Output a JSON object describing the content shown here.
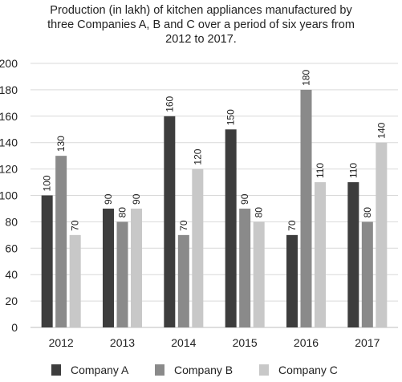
{
  "chart_data": {
    "type": "bar",
    "title_lines": [
      "Production (in lakh) of kitchen appliances manufactured by",
      "three Companies A, B and C over a period of six years from",
      "2012 to 2017."
    ],
    "categories": [
      "2012",
      "2013",
      "2014",
      "2015",
      "2016",
      "2017"
    ],
    "series": [
      {
        "name": "Company A",
        "values": [
          100,
          90,
          160,
          150,
          70,
          110
        ],
        "color": "#3d3d3d"
      },
      {
        "name": "Company B",
        "values": [
          130,
          80,
          70,
          90,
          180,
          80
        ],
        "color": "#8a8a8a"
      },
      {
        "name": "Company C",
        "values": [
          70,
          90,
          120,
          80,
          110,
          140
        ],
        "color": "#c8c8c8"
      }
    ],
    "ylim": [
      0,
      200
    ],
    "yticks": [
      "0",
      "20",
      "40",
      "60",
      "80",
      "100",
      "120",
      "140",
      "160",
      "180",
      "200"
    ],
    "grid": true,
    "data_labels": true,
    "legend_position": "bottom"
  }
}
